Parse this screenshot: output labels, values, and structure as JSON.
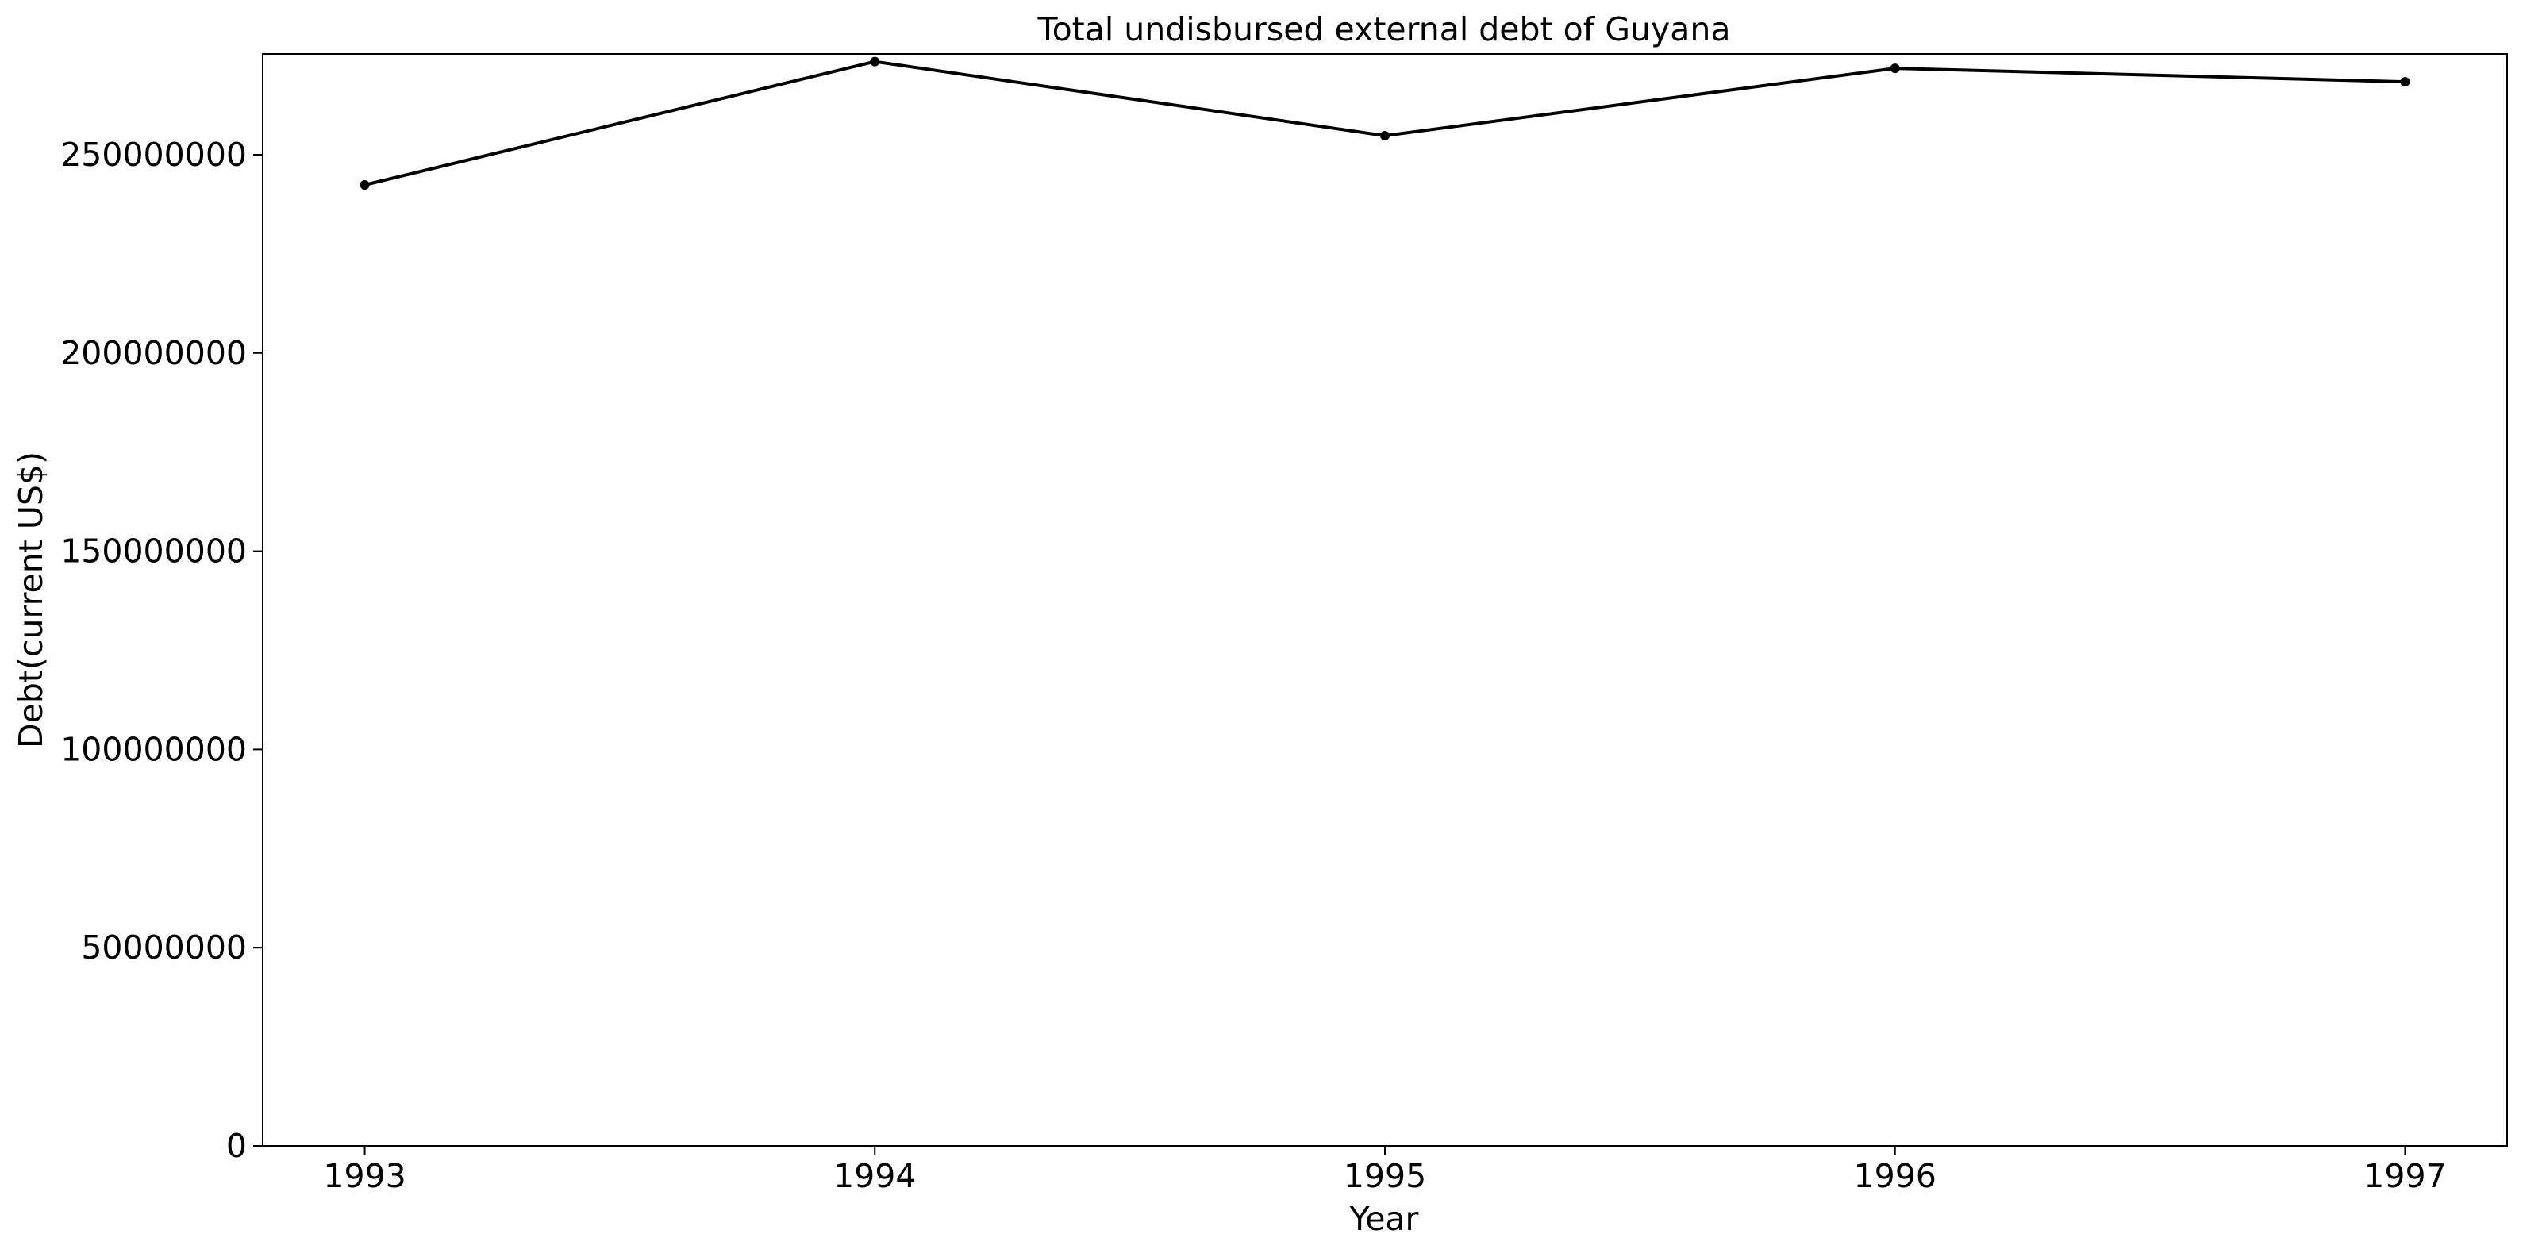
{
  "chart_data": {
    "type": "line",
    "title": "Total undisbursed external debt of Guyana",
    "xlabel": "Year",
    "ylabel": "Debt(current US$)",
    "x": [
      1993,
      1994,
      1995,
      1996,
      1997
    ],
    "x_tick_labels": [
      "1993",
      "1994",
      "1995",
      "1996",
      "1997"
    ],
    "series": [
      {
        "values": [
          242400000,
          273500000,
          254800000,
          271800000,
          268400000
        ],
        "color": "#000000",
        "marker": "dot"
      }
    ],
    "xlim": [
      1992.8,
      1997.2
    ],
    "ylim": [
      0,
      275000000
    ],
    "y_ticks": [
      0,
      50000000,
      100000000,
      150000000,
      200000000,
      250000000
    ],
    "y_tick_labels": [
      "0",
      "50000000",
      "100000000",
      "150000000",
      "200000000",
      "250000000"
    ],
    "grid": false,
    "legend": "none"
  }
}
